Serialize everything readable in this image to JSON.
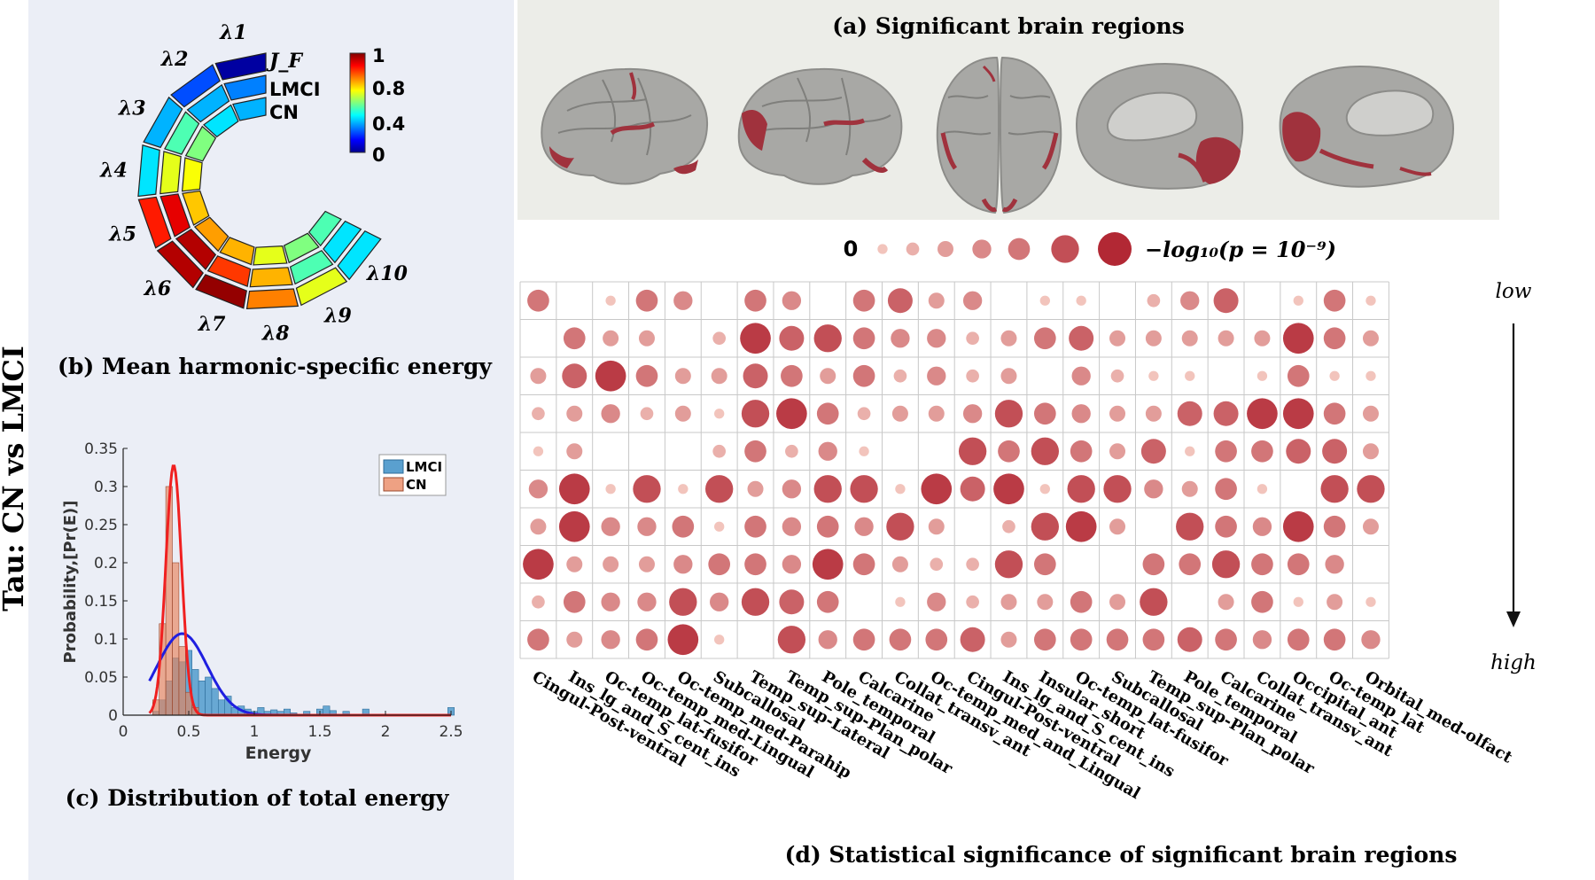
{
  "side_title": "Tau: CN vs LMCI",
  "panel_a": {
    "caption": "(a) Significant brain regions"
  },
  "panel_b": {
    "caption": "(b) Mean harmonic-specific energy",
    "ring_labels": [
      "J_F",
      "LMCI",
      "CN"
    ],
    "harmonics": [
      "λ1",
      "λ2",
      "λ3",
      "λ4",
      "λ5",
      "λ6",
      "λ7",
      "λ8",
      "λ9",
      "λ10"
    ],
    "colorbar_ticks": [
      "1",
      "0.8",
      "0.4",
      "0"
    ],
    "chart_data": {
      "type": "heatmap",
      "rows": [
        "J_F",
        "LMCI",
        "CN"
      ],
      "x": [
        "λ1",
        "λ2",
        "λ3",
        "λ4",
        "λ5",
        "λ6",
        "λ7",
        "λ8",
        "λ9",
        "λ10"
      ],
      "values": [
        [
          0.02,
          0.2,
          0.3,
          0.35,
          0.85,
          0.95,
          0.98,
          0.75,
          0.6,
          0.35
        ],
        [
          0.25,
          0.3,
          0.45,
          0.6,
          0.9,
          0.95,
          0.82,
          0.7,
          0.45,
          0.35
        ],
        [
          0.3,
          0.35,
          0.5,
          0.62,
          0.68,
          0.72,
          0.7,
          0.6,
          0.5,
          0.45
        ]
      ],
      "colorbar_range": [
        0,
        1
      ]
    }
  },
  "panel_c": {
    "caption": "(c) Distribution of total energy",
    "chart_data": {
      "type": "bar",
      "xlabel": "Energy",
      "ylabel": "Probability,[Pr(E)]",
      "xlim": [
        0,
        2.5
      ],
      "ylim": [
        0,
        0.35
      ],
      "xticks": [
        "0",
        "0.5",
        "1",
        "1.5",
        "2",
        "2.5"
      ],
      "yticks": [
        "0",
        "0.05",
        "0.1",
        "0.15",
        "0.2",
        "0.25",
        "0.3",
        "0.35"
      ],
      "legend": [
        "LMCI",
        "CN"
      ],
      "legend_position": "top-right",
      "bin_width": 0.05,
      "lmci_bins": [
        [
          0.25,
          0.005
        ],
        [
          0.3,
          0.02
        ],
        [
          0.35,
          0.045
        ],
        [
          0.4,
          0.075
        ],
        [
          0.45,
          0.07
        ],
        [
          0.5,
          0.085
        ],
        [
          0.55,
          0.06
        ],
        [
          0.6,
          0.045
        ],
        [
          0.65,
          0.05
        ],
        [
          0.7,
          0.035
        ],
        [
          0.75,
          0.02
        ],
        [
          0.8,
          0.025
        ],
        [
          0.85,
          0.01
        ],
        [
          0.9,
          0.012
        ],
        [
          0.95,
          0.008
        ],
        [
          1.0,
          0.005
        ],
        [
          1.05,
          0.01
        ],
        [
          1.1,
          0.005
        ],
        [
          1.15,
          0.007
        ],
        [
          1.2,
          0.005
        ],
        [
          1.25,
          0.008
        ],
        [
          1.3,
          0.003
        ],
        [
          1.4,
          0.005
        ],
        [
          1.5,
          0.008
        ],
        [
          1.55,
          0.012
        ],
        [
          1.6,
          0.006
        ],
        [
          1.7,
          0.005
        ],
        [
          1.85,
          0.008
        ],
        [
          2.5,
          0.01
        ]
      ],
      "cn_bins": [
        [
          0.25,
          0.02
        ],
        [
          0.3,
          0.12
        ],
        [
          0.35,
          0.3
        ],
        [
          0.4,
          0.2
        ],
        [
          0.45,
          0.09
        ],
        [
          0.5,
          0.03
        ],
        [
          0.55,
          0.01
        ]
      ],
      "lmci_fit": {
        "mean": 0.45,
        "sd": 0.19,
        "peak": 0.107
      },
      "cn_fit": {
        "mean": 0.385,
        "sd": 0.06,
        "peak": 0.328
      }
    }
  },
  "panel_d": {
    "caption": "(d) Statistical significance of significant brain regions",
    "legend_zero": "0",
    "legend_max": "−log₁₀(p = 10⁻⁹)",
    "row_low": "low",
    "row_high": "high",
    "chart_data": {
      "type": "scatter",
      "columns": [
        "Cingul-Post-ventral",
        "Ins_lg_and_S_cent_ins",
        "Oc-temp_lat-fusifor",
        "Oc-temp_med-Lingual",
        "Oc-temp_med-Parahip",
        "Subcallosal",
        "Temp_sup-Lateral",
        "Temp_sup-Plan_polar",
        "Pole_temporal",
        "Calcarine",
        "Collat_transv_ant",
        "Oc-temp_med_and_Lingual",
        "Cingul-Post-ventral",
        "Ins_lg_and_S_cent_ins",
        "Insular_short",
        "Oc-temp_lat-fusifor",
        "Subcallosal",
        "Temp_sup-Plan_polar",
        "Pole_temporal",
        "Calcarine",
        "Collat_transv_ant",
        "Occipital_ant",
        "Oc-temp_lat",
        "Orbital_med-olfact"
      ],
      "rows": 10,
      "scale_max": 9,
      "values": [
        [
          5,
          0,
          1,
          5,
          4,
          0,
          5,
          4,
          0,
          5,
          6,
          3,
          4,
          0,
          1,
          1,
          0,
          2,
          4,
          6,
          0,
          1,
          5,
          1
        ],
        [
          0,
          5,
          3,
          3,
          0,
          2,
          8,
          6,
          7,
          5,
          4,
          4,
          2,
          3,
          5,
          6,
          3,
          3,
          3,
          3,
          3,
          8,
          5,
          3
        ],
        [
          3,
          6,
          8,
          5,
          3,
          3,
          6,
          5,
          3,
          5,
          2,
          4,
          2,
          3,
          0,
          4,
          2,
          1,
          1,
          0,
          1,
          5,
          1,
          1
        ],
        [
          2,
          3,
          4,
          2,
          3,
          1,
          7,
          8,
          5,
          2,
          3,
          3,
          4,
          7,
          5,
          4,
          3,
          3,
          6,
          6,
          8,
          8,
          5,
          3
        ],
        [
          1,
          3,
          0,
          0,
          0,
          2,
          5,
          2,
          4,
          1,
          0,
          0,
          7,
          5,
          7,
          5,
          3,
          6,
          1,
          5,
          5,
          6,
          6,
          3
        ],
        [
          4,
          8,
          1,
          7,
          1,
          7,
          3,
          4,
          7,
          7,
          1,
          8,
          6,
          8,
          1,
          7,
          7,
          4,
          3,
          5,
          1,
          0,
          7,
          7
        ],
        [
          3,
          8,
          4,
          4,
          5,
          1,
          5,
          4,
          5,
          4,
          7,
          3,
          0,
          2,
          7,
          8,
          3,
          0,
          7,
          5,
          4,
          8,
          5,
          3
        ],
        [
          8,
          3,
          3,
          3,
          4,
          5,
          5,
          4,
          8,
          5,
          3,
          2,
          2,
          7,
          5,
          0,
          0,
          5,
          5,
          7,
          5,
          5,
          4,
          0
        ],
        [
          2,
          5,
          4,
          4,
          7,
          4,
          7,
          6,
          5,
          0,
          1,
          4,
          2,
          3,
          3,
          5,
          3,
          7,
          0,
          3,
          5,
          1,
          3,
          1
        ],
        [
          5,
          3,
          4,
          5,
          8,
          1,
          0,
          7,
          4,
          5,
          5,
          5,
          6,
          3,
          5,
          5,
          5,
          5,
          6,
          5,
          4,
          5,
          5,
          4
        ]
      ]
    }
  }
}
